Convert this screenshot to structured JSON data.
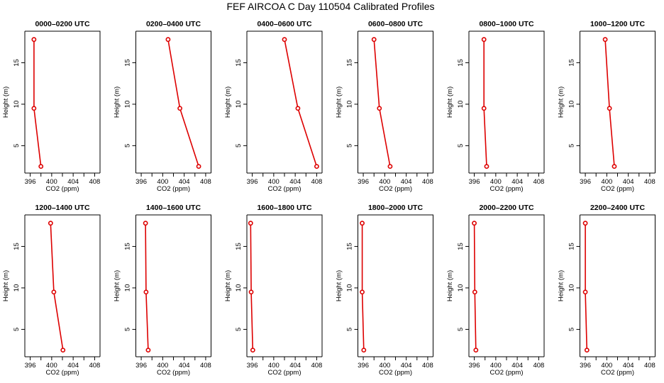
{
  "title": "FEF AIRCOA C  Day 110504  Calibrated Profiles",
  "colors": {
    "line": "#dd0000",
    "axes": "#000000",
    "background": "#ffffff"
  },
  "chart_data": [
    {
      "type": "line",
      "title": "0000–0200 UTC",
      "xlabel": "CO2 (ppm)",
      "ylabel": "Height (m)",
      "xlim": [
        395,
        409
      ],
      "ylim": [
        1.7,
        18.8
      ],
      "xticks": [
        "396",
        "400",
        "404",
        "408"
      ],
      "yticks": [
        "5",
        "10",
        "15"
      ],
      "series": [
        {
          "x": [
            396.7,
            396.7,
            398.0
          ],
          "y": [
            17.8,
            9.5,
            2.5
          ]
        }
      ]
    },
    {
      "type": "line",
      "title": "0200–0400 UTC",
      "xlabel": "CO2 (ppm)",
      "ylabel": "Height (m)",
      "xlim": [
        395,
        409
      ],
      "ylim": [
        1.7,
        18.8
      ],
      "xticks": [
        "396",
        "400",
        "404",
        "408"
      ],
      "yticks": [
        "5",
        "10",
        "15"
      ],
      "series": [
        {
          "x": [
            401.0,
            403.2,
            406.7
          ],
          "y": [
            17.8,
            9.5,
            2.5
          ]
        }
      ]
    },
    {
      "type": "line",
      "title": "0400–0600 UTC",
      "xlabel": "CO2 (ppm)",
      "ylabel": "Height (m)",
      "xlim": [
        395,
        409
      ],
      "ylim": [
        1.7,
        18.8
      ],
      "xticks": [
        "396",
        "400",
        "404",
        "408"
      ],
      "yticks": [
        "5",
        "10",
        "15"
      ],
      "series": [
        {
          "x": [
            402.0,
            404.5,
            408.0
          ],
          "y": [
            17.8,
            9.5,
            2.5
          ]
        }
      ]
    },
    {
      "type": "line",
      "title": "0600–0800 UTC",
      "xlabel": "CO2 (ppm)",
      "ylabel": "Height (m)",
      "xlim": [
        395,
        409
      ],
      "ylim": [
        1.7,
        18.8
      ],
      "xticks": [
        "396",
        "400",
        "404",
        "408"
      ],
      "yticks": [
        "5",
        "10",
        "15"
      ],
      "series": [
        {
          "x": [
            398.0,
            399.0,
            401.0
          ],
          "y": [
            17.8,
            9.5,
            2.5
          ]
        }
      ]
    },
    {
      "type": "line",
      "title": "0800–1000 UTC",
      "xlabel": "CO2 (ppm)",
      "ylabel": "Height (m)",
      "xlim": [
        395,
        409
      ],
      "ylim": [
        1.7,
        18.8
      ],
      "xticks": [
        "396",
        "400",
        "404",
        "408"
      ],
      "yticks": [
        "5",
        "10",
        "15"
      ],
      "series": [
        {
          "x": [
            397.8,
            397.8,
            398.3
          ],
          "y": [
            17.8,
            9.5,
            2.5
          ]
        }
      ]
    },
    {
      "type": "line",
      "title": "1000–1200 UTC",
      "xlabel": "CO2 (ppm)",
      "ylabel": "Height (m)",
      "xlim": [
        395,
        409
      ],
      "ylim": [
        1.7,
        18.8
      ],
      "xticks": [
        "396",
        "400",
        "404",
        "408"
      ],
      "yticks": [
        "5",
        "10",
        "15"
      ],
      "series": [
        {
          "x": [
            399.7,
            400.5,
            401.4
          ],
          "y": [
            17.8,
            9.5,
            2.5
          ]
        }
      ]
    },
    {
      "type": "line",
      "title": "1200–1400 UTC",
      "xlabel": "CO2 (ppm)",
      "ylabel": "Height (m)",
      "xlim": [
        395,
        409
      ],
      "ylim": [
        1.7,
        18.8
      ],
      "xticks": [
        "396",
        "400",
        "404",
        "408"
      ],
      "yticks": [
        "5",
        "10",
        "15"
      ],
      "series": [
        {
          "x": [
            399.8,
            400.4,
            402.1
          ],
          "y": [
            17.8,
            9.5,
            2.5
          ]
        }
      ]
    },
    {
      "type": "line",
      "title": "1400–1600 UTC",
      "xlabel": "CO2 (ppm)",
      "ylabel": "Height (m)",
      "xlim": [
        395,
        409
      ],
      "ylim": [
        1.7,
        18.8
      ],
      "xticks": [
        "396",
        "400",
        "404",
        "408"
      ],
      "yticks": [
        "5",
        "10",
        "15"
      ],
      "series": [
        {
          "x": [
            396.8,
            396.9,
            397.3
          ],
          "y": [
            17.8,
            9.5,
            2.5
          ]
        }
      ]
    },
    {
      "type": "line",
      "title": "1600–1800 UTC",
      "xlabel": "CO2 (ppm)",
      "ylabel": "Height (m)",
      "xlim": [
        395,
        409
      ],
      "ylim": [
        1.7,
        18.8
      ],
      "xticks": [
        "396",
        "400",
        "404",
        "408"
      ],
      "yticks": [
        "5",
        "10",
        "15"
      ],
      "series": [
        {
          "x": [
            395.7,
            395.8,
            396.1
          ],
          "y": [
            17.8,
            9.5,
            2.5
          ]
        }
      ]
    },
    {
      "type": "line",
      "title": "1800–2000 UTC",
      "xlabel": "CO2 (ppm)",
      "ylabel": "Height (m)",
      "xlim": [
        395,
        409
      ],
      "ylim": [
        1.7,
        18.8
      ],
      "xticks": [
        "396",
        "400",
        "404",
        "408"
      ],
      "yticks": [
        "5",
        "10",
        "15"
      ],
      "series": [
        {
          "x": [
            395.8,
            395.8,
            396.1
          ],
          "y": [
            17.8,
            9.5,
            2.5
          ]
        }
      ]
    },
    {
      "type": "line",
      "title": "2000–2200 UTC",
      "xlabel": "CO2 (ppm)",
      "ylabel": "Height (m)",
      "xlim": [
        395,
        409
      ],
      "ylim": [
        1.7,
        18.8
      ],
      "xticks": [
        "396",
        "400",
        "404",
        "408"
      ],
      "yticks": [
        "5",
        "10",
        "15"
      ],
      "series": [
        {
          "x": [
            396.0,
            396.1,
            396.3
          ],
          "y": [
            17.8,
            9.5,
            2.5
          ]
        }
      ]
    },
    {
      "type": "line",
      "title": "2200–2400 UTC",
      "xlabel": "CO2 (ppm)",
      "ylabel": "Height (m)",
      "xlim": [
        395,
        409
      ],
      "ylim": [
        1.7,
        18.8
      ],
      "xticks": [
        "396",
        "400",
        "404",
        "408"
      ],
      "yticks": [
        "5",
        "10",
        "15"
      ],
      "series": [
        {
          "x": [
            396.0,
            396.0,
            396.3
          ],
          "y": [
            17.8,
            9.5,
            2.5
          ]
        }
      ]
    }
  ]
}
